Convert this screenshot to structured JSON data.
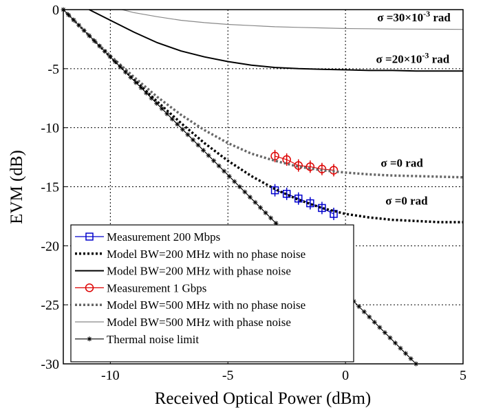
{
  "chart_data": {
    "type": "line",
    "xlabel": "Received Optical Power (dBm)",
    "ylabel": "EVM (dB)",
    "xlim": [
      -12,
      5
    ],
    "ylim": [
      -30,
      0
    ],
    "xticks": [
      -10,
      -5,
      0,
      5
    ],
    "xtick_labels": [
      "-10",
      "-5",
      "0",
      "5"
    ],
    "yticks": [
      0,
      -5,
      -10,
      -15,
      -20,
      -25,
      -30
    ],
    "ytick_labels": [
      "0",
      "-5",
      "-10",
      "-15",
      "-20",
      "-25",
      "-30"
    ],
    "grid": true,
    "legend_position": "bottom-left",
    "series": [
      {
        "name": "Measurement 200 Mbps",
        "color": "#0000cc",
        "style": "solid-thin",
        "marker": "square",
        "x": [
          -3.0,
          -2.5,
          -2.0,
          -1.5,
          -1.0,
          -0.5
        ],
        "y": [
          -15.3,
          -15.6,
          -16.0,
          -16.4,
          -16.8,
          -17.3
        ]
      },
      {
        "name": "Model BW=200 MHz with no phase noise",
        "color": "#000000",
        "style": "dotted",
        "marker": "none",
        "x": [
          -12,
          -11,
          -10,
          -9,
          -8,
          -7,
          -6,
          -5,
          -4,
          -3,
          -2,
          -1,
          0,
          1,
          2,
          3,
          4,
          5
        ],
        "y": [
          0.0,
          -2.0,
          -4.0,
          -5.9,
          -7.8,
          -9.6,
          -11.3,
          -12.8,
          -14.1,
          -15.2,
          -16.1,
          -16.8,
          -17.3,
          -17.6,
          -17.8,
          -17.9,
          -18.0,
          -18.0
        ]
      },
      {
        "name": "Model BW=200 MHz with phase noise",
        "color": "#000000",
        "style": "solid",
        "marker": "none",
        "x": [
          -10.9,
          -10,
          -9,
          -8,
          -7,
          -6,
          -5,
          -4,
          -3,
          -2,
          -1,
          0,
          1,
          2,
          3,
          4,
          5
        ],
        "y": [
          0.0,
          -0.9,
          -1.9,
          -2.8,
          -3.5,
          -4.0,
          -4.4,
          -4.7,
          -4.9,
          -5.0,
          -5.05,
          -5.1,
          -5.15,
          -5.15,
          -5.2,
          -5.2,
          -5.2
        ]
      },
      {
        "name": "Measurement 1 Gbps",
        "color": "#dd0000",
        "style": "solid-thin",
        "marker": "circle",
        "x": [
          -3.0,
          -2.5,
          -2.0,
          -1.5,
          -1.0,
          -0.5
        ],
        "y": [
          -12.4,
          -12.7,
          -13.2,
          -13.3,
          -13.5,
          -13.6
        ]
      },
      {
        "name": "Model BW=500 MHz with no phase noise",
        "color": "#666666",
        "style": "dotted",
        "marker": "none",
        "x": [
          -12,
          -11,
          -10,
          -9,
          -8,
          -7,
          -6,
          -5,
          -4,
          -3,
          -2,
          -1,
          0,
          1,
          2,
          3,
          4,
          5
        ],
        "y": [
          0.0,
          -2.0,
          -3.9,
          -5.7,
          -7.4,
          -8.9,
          -10.2,
          -11.3,
          -12.2,
          -12.8,
          -13.3,
          -13.6,
          -13.8,
          -13.95,
          -14.05,
          -14.1,
          -14.15,
          -14.2
        ]
      },
      {
        "name": "Model BW=500 MHz with phase noise",
        "color": "#888888",
        "style": "solid-thin",
        "marker": "none",
        "x": [
          -9.5,
          -9,
          -8,
          -7,
          -6,
          -5,
          -4,
          -3,
          -2,
          -1,
          0,
          1,
          2,
          3,
          4,
          5
        ],
        "y": [
          0.0,
          -0.25,
          -0.6,
          -0.9,
          -1.1,
          -1.25,
          -1.35,
          -1.45,
          -1.5,
          -1.55,
          -1.6,
          -1.62,
          -1.64,
          -1.65,
          -1.66,
          -1.67
        ]
      },
      {
        "name": "Thermal noise limit",
        "color": "#000000",
        "style": "solid-thin",
        "marker": "star",
        "x": [
          -12,
          3
        ],
        "y": [
          0,
          -30
        ]
      }
    ],
    "annotations": [
      {
        "base": "σ =30×10",
        "sup": "-3",
        "tail": " rad",
        "x": 1.35,
        "y": -1.0
      },
      {
        "base": "σ =20×10",
        "sup": "-3",
        "tail": " rad",
        "x": 1.3,
        "y": -4.5
      },
      {
        "base": "σ =0 rad",
        "sup": "",
        "tail": "",
        "x": 1.5,
        "y": -13.3
      },
      {
        "base": "σ =0 rad",
        "sup": "",
        "tail": "",
        "x": 1.7,
        "y": -16.5
      }
    ]
  }
}
